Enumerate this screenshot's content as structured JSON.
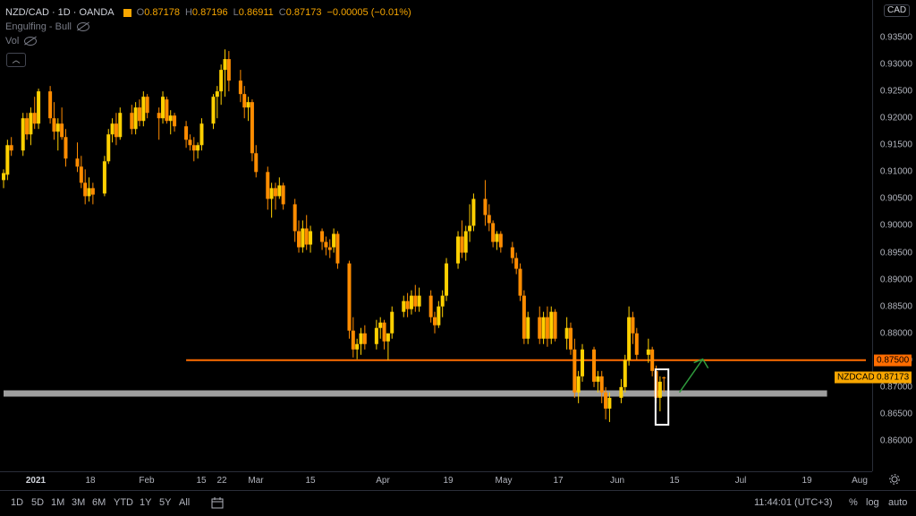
{
  "legend": {
    "symbol": "NZD/CAD · 1D · OANDA",
    "o_label": "O",
    "o_value": "0.87178",
    "h_label": "H",
    "h_value": "0.87196",
    "l_label": "L",
    "l_value": "0.86911",
    "c_label": "C",
    "c_value": "0.87173",
    "change": "−0.00005 (−0.01%)",
    "indicator": "Engulfing - Bull",
    "vol": "Vol"
  },
  "currency": "CAD",
  "price_labels": [
    "0.93500",
    "0.93000",
    "0.92500",
    "0.92000",
    "0.91500",
    "0.91000",
    "0.90500",
    "0.90000",
    "0.89500",
    "0.89000",
    "0.88500",
    "0.88000",
    "0.87500",
    "0.87000",
    "0.86500",
    "0.86000"
  ],
  "tags": {
    "symbol": "NZDCAD",
    "last_price": "0.87173",
    "level_price": "0.87500"
  },
  "time_labels": [
    {
      "t": "2021",
      "bold": true
    },
    {
      "t": "18"
    },
    {
      "t": "Feb"
    },
    {
      "t": "15"
    },
    {
      "t": "22"
    },
    {
      "t": "Mar"
    },
    {
      "t": "15"
    },
    {
      "t": "Apr"
    },
    {
      "t": "19"
    },
    {
      "t": "May"
    },
    {
      "t": "17"
    },
    {
      "t": "Jun"
    },
    {
      "t": "15"
    },
    {
      "t": "Jul"
    },
    {
      "t": "19"
    },
    {
      "t": "Aug"
    }
  ],
  "toolbar": {
    "ranges": [
      "1D",
      "5D",
      "1M",
      "3M",
      "6M",
      "YTD",
      "1Y",
      "5Y",
      "All"
    ],
    "time": "11:44:01 (UTC+3)",
    "percent": "%",
    "log": "log",
    "auto": "auto"
  },
  "colors": {
    "up": "#ffd000",
    "down": "#ff8c00",
    "level": "#ff6d00",
    "zone": "#9e9e9e",
    "arrow": "#2e9a3c",
    "box": "#ffffff"
  },
  "chart_data": {
    "type": "candlestick",
    "title": "NZD/CAD · 1D · OANDA",
    "y_range": [
      0.857,
      0.938
    ],
    "x_range": [
      "2020-12-30",
      "2021-08-09"
    ],
    "horizontal_levels": [
      {
        "price": 0.875,
        "from": "2021-02-15",
        "to": "2021-08-09",
        "label": "0.87500",
        "color": "#ff6d00"
      },
      {
        "price": 0.8688,
        "from": "2020-12-30",
        "to": "2021-07-30",
        "color": "#9e9e9e"
      }
    ],
    "candles": [
      [
        "2020-12-30",
        0.9085,
        0.9105,
        0.907,
        0.9098
      ],
      [
        "2020-12-31",
        0.9095,
        0.916,
        0.9085,
        0.915
      ],
      [
        "2021-01-01",
        0.915,
        0.9165,
        0.913,
        0.914
      ],
      [
        "2021-01-04",
        0.914,
        0.921,
        0.913,
        0.92
      ],
      [
        "2021-01-05",
        0.92,
        0.921,
        0.916,
        0.917
      ],
      [
        "2021-01-06",
        0.917,
        0.922,
        0.915,
        0.921
      ],
      [
        "2021-01-07",
        0.921,
        0.924,
        0.918,
        0.919
      ],
      [
        "2021-01-08",
        0.919,
        0.9255,
        0.918,
        0.925
      ],
      [
        "2021-01-11",
        0.925,
        0.926,
        0.919,
        0.92
      ],
      [
        "2021-01-12",
        0.92,
        0.923,
        0.916,
        0.9175
      ],
      [
        "2021-01-13",
        0.9175,
        0.92,
        0.914,
        0.919
      ],
      [
        "2021-01-14",
        0.919,
        0.922,
        0.916,
        0.9165
      ],
      [
        "2021-01-15",
        0.9165,
        0.918,
        0.911,
        0.9125
      ],
      [
        "2021-01-18",
        0.9125,
        0.9155,
        0.91,
        0.911
      ],
      [
        "2021-01-19",
        0.911,
        0.913,
        0.907,
        0.908
      ],
      [
        "2021-01-20",
        0.908,
        0.9105,
        0.904,
        0.9055
      ],
      [
        "2021-01-21",
        0.9055,
        0.909,
        0.9045,
        0.907
      ],
      [
        "2021-01-22",
        0.907,
        0.908,
        0.904,
        0.9058
      ],
      [
        "2021-01-25",
        0.906,
        0.913,
        0.9055,
        0.912
      ],
      [
        "2021-01-26",
        0.912,
        0.918,
        0.9115,
        0.917
      ],
      [
        "2021-01-27",
        0.917,
        0.92,
        0.9155,
        0.919
      ],
      [
        "2021-01-28",
        0.919,
        0.921,
        0.915,
        0.9165
      ],
      [
        "2021-01-29",
        0.9165,
        0.922,
        0.916,
        0.921
      ],
      [
        "2021-02-01",
        0.921,
        0.9225,
        0.917,
        0.918
      ],
      [
        "2021-02-02",
        0.918,
        0.923,
        0.917,
        0.922
      ],
      [
        "2021-02-03",
        0.922,
        0.9235,
        0.9185,
        0.9195
      ],
      [
        "2021-02-04",
        0.9195,
        0.925,
        0.9185,
        0.924
      ],
      [
        "2021-02-05",
        0.924,
        0.9245,
        0.92,
        0.921
      ],
      [
        "2021-02-08",
        0.921,
        0.922,
        0.916,
        0.92
      ],
      [
        "2021-02-09",
        0.92,
        0.925,
        0.919,
        0.924
      ],
      [
        "2021-02-10",
        0.9235,
        0.924,
        0.919,
        0.9195
      ],
      [
        "2021-02-11",
        0.9195,
        0.9215,
        0.917,
        0.9205
      ],
      [
        "2021-02-12",
        0.9205,
        0.921,
        0.9175,
        0.9185
      ],
      [
        "2021-02-15",
        0.9185,
        0.9195,
        0.9145,
        0.916
      ],
      [
        "2021-02-16",
        0.916,
        0.917,
        0.914,
        0.915
      ],
      [
        "2021-02-17",
        0.915,
        0.9165,
        0.912,
        0.914
      ],
      [
        "2021-02-18",
        0.914,
        0.9155,
        0.9125,
        0.915
      ],
      [
        "2021-02-19",
        0.915,
        0.92,
        0.914,
        0.919
      ],
      [
        "2021-02-22",
        0.919,
        0.9245,
        0.918,
        0.924
      ],
      [
        "2021-02-23",
        0.924,
        0.926,
        0.92,
        0.925
      ],
      [
        "2021-02-24",
        0.925,
        0.93,
        0.9225,
        0.929
      ],
      [
        "2021-02-25",
        0.929,
        0.9328,
        0.924,
        0.931
      ],
      [
        "2021-02-26",
        0.931,
        0.9325,
        0.925,
        0.927
      ],
      [
        "2021-03-01",
        0.927,
        0.929,
        0.923,
        0.9245
      ],
      [
        "2021-03-02",
        0.9245,
        0.926,
        0.92,
        0.922
      ],
      [
        "2021-03-03",
        0.922,
        0.924,
        0.9195,
        0.923
      ],
      [
        "2021-03-04",
        0.923,
        0.9235,
        0.912,
        0.9135
      ],
      [
        "2021-03-05",
        0.9135,
        0.915,
        0.909,
        0.91
      ],
      [
        "2021-03-08",
        0.91,
        0.911,
        0.903,
        0.905
      ],
      [
        "2021-03-09",
        0.905,
        0.908,
        0.9015,
        0.907
      ],
      [
        "2021-03-10",
        0.907,
        0.908,
        0.903,
        0.9055
      ],
      [
        "2021-03-11",
        0.9055,
        0.909,
        0.905,
        0.9075
      ],
      [
        "2021-03-12",
        0.9075,
        0.908,
        0.903,
        0.904
      ],
      [
        "2021-03-15",
        0.904,
        0.905,
        0.897,
        0.899
      ],
      [
        "2021-03-16",
        0.899,
        0.901,
        0.895,
        0.896
      ],
      [
        "2021-03-17",
        0.896,
        0.901,
        0.895,
        0.8995
      ],
      [
        "2021-03-18",
        0.8995,
        0.902,
        0.8955,
        0.8965
      ],
      [
        "2021-03-19",
        0.8965,
        0.9,
        0.895,
        0.899
      ],
      [
        "2021-03-22",
        0.899,
        0.8995,
        0.8955,
        0.897
      ],
      [
        "2021-03-23",
        0.897,
        0.898,
        0.8945,
        0.896
      ],
      [
        "2021-03-24",
        0.896,
        0.8975,
        0.894,
        0.8955
      ],
      [
        "2021-03-25",
        0.896,
        0.8995,
        0.895,
        0.8985
      ],
      [
        "2021-03-26",
        0.8985,
        0.899,
        0.892,
        0.893
      ],
      [
        "2021-03-29",
        0.893,
        0.8935,
        0.879,
        0.8805
      ],
      [
        "2021-03-30",
        0.8805,
        0.883,
        0.8755,
        0.877
      ],
      [
        "2021-03-31",
        0.877,
        0.879,
        0.8752,
        0.878
      ],
      [
        "2021-04-01",
        0.878,
        0.881,
        0.876,
        0.88
      ],
      [
        "2021-04-02",
        0.88,
        0.8815,
        0.877,
        0.878
      ],
      [
        "2021-04-05",
        0.878,
        0.8825,
        0.877,
        0.881
      ],
      [
        "2021-04-06",
        0.881,
        0.883,
        0.879,
        0.882
      ],
      [
        "2021-04-07",
        0.882,
        0.8825,
        0.877,
        0.8785
      ],
      [
        "2021-04-08",
        0.8785,
        0.8795,
        0.875,
        0.88
      ],
      [
        "2021-04-09",
        0.88,
        0.885,
        0.879,
        0.884
      ],
      [
        "2021-04-12",
        0.884,
        0.887,
        0.883,
        0.886
      ],
      [
        "2021-04-13",
        0.886,
        0.8875,
        0.883,
        0.8845
      ],
      [
        "2021-04-14",
        0.8845,
        0.888,
        0.8835,
        0.887
      ],
      [
        "2021-04-15",
        0.887,
        0.889,
        0.884,
        0.885
      ],
      [
        "2021-04-16",
        0.885,
        0.8885,
        0.884,
        0.887
      ],
      [
        "2021-04-19",
        0.887,
        0.888,
        0.882,
        0.883
      ],
      [
        "2021-04-20",
        0.883,
        0.884,
        0.88,
        0.8815
      ],
      [
        "2021-04-21",
        0.8815,
        0.886,
        0.881,
        0.885
      ],
      [
        "2021-04-22",
        0.885,
        0.888,
        0.883,
        0.887
      ],
      [
        "2021-04-23",
        0.887,
        0.894,
        0.886,
        0.893
      ],
      [
        "2021-04-26",
        0.893,
        0.899,
        0.892,
        0.898
      ],
      [
        "2021-04-27",
        0.898,
        0.901,
        0.894,
        0.895
      ],
      [
        "2021-04-28",
        0.895,
        0.9,
        0.8935,
        0.899
      ],
      [
        "2021-04-29",
        0.899,
        0.904,
        0.897,
        0.9
      ],
      [
        "2021-04-30",
        0.9,
        0.906,
        0.899,
        0.905
      ],
      [
        "2021-05-03",
        0.905,
        0.9085,
        0.9,
        0.902
      ],
      [
        "2021-05-04",
        0.902,
        0.904,
        0.899,
        0.9005
      ],
      [
        "2021-05-05",
        0.9005,
        0.901,
        0.896,
        0.897
      ],
      [
        "2021-05-06",
        0.897,
        0.899,
        0.8955,
        0.8985
      ],
      [
        "2021-05-07",
        0.8985,
        0.899,
        0.895,
        0.896
      ],
      [
        "2021-05-10",
        0.896,
        0.897,
        0.893,
        0.894
      ],
      [
        "2021-05-11",
        0.894,
        0.895,
        0.891,
        0.892
      ],
      [
        "2021-05-12",
        0.892,
        0.893,
        0.886,
        0.887
      ],
      [
        "2021-05-13",
        0.887,
        0.888,
        0.878,
        0.879
      ],
      [
        "2021-05-14",
        0.879,
        0.884,
        0.878,
        0.883
      ],
      [
        "2021-05-17",
        0.883,
        0.885,
        0.878,
        0.879
      ],
      [
        "2021-05-18",
        0.879,
        0.884,
        0.878,
        0.883
      ],
      [
        "2021-05-19",
        0.883,
        0.885,
        0.8775,
        0.879
      ],
      [
        "2021-05-20",
        0.879,
        0.885,
        0.878,
        0.884
      ],
      [
        "2021-05-21",
        0.884,
        0.8845,
        0.8785,
        0.879
      ],
      [
        "2021-05-24",
        0.879,
        0.883,
        0.877,
        0.881
      ],
      [
        "2021-05-25",
        0.881,
        0.882,
        0.876,
        0.877
      ],
      [
        "2021-05-26",
        0.877,
        0.879,
        0.868,
        0.869
      ],
      [
        "2021-05-27",
        0.869,
        0.873,
        0.867,
        0.872
      ],
      [
        "2021-05-28",
        0.872,
        0.878,
        0.871,
        0.877
      ],
      [
        "2021-05-31",
        0.877,
        0.8775,
        0.87,
        0.871
      ],
      [
        "2021-06-01",
        0.871,
        0.873,
        0.869,
        0.872
      ],
      [
        "2021-06-02",
        0.872,
        0.873,
        0.867,
        0.869
      ],
      [
        "2021-06-03",
        0.869,
        0.87,
        0.864,
        0.866
      ],
      [
        "2021-06-04",
        0.866,
        0.869,
        0.8635,
        0.868
      ],
      [
        "2021-06-07",
        0.868,
        0.8715,
        0.867,
        0.87
      ],
      [
        "2021-06-08",
        0.87,
        0.876,
        0.869,
        0.875
      ],
      [
        "2021-06-09",
        0.875,
        0.885,
        0.874,
        0.883
      ],
      [
        "2021-06-10",
        0.883,
        0.884,
        0.878,
        0.88
      ],
      [
        "2021-06-11",
        0.88,
        0.881,
        0.875,
        0.876
      ],
      [
        "2021-06-14",
        0.876,
        0.879,
        0.8745,
        0.877
      ],
      [
        "2021-06-15",
        0.877,
        0.8775,
        0.872,
        0.873
      ],
      [
        "2021-06-16",
        0.873,
        0.874,
        0.867,
        0.868
      ],
      [
        "2021-06-17",
        0.868,
        0.872,
        0.8655,
        0.871
      ],
      [
        "2021-06-18",
        0.87178,
        0.87196,
        0.86911,
        0.87173
      ]
    ],
    "highlight_box": {
      "from": "2021-06-17",
      "to": "2021-06-18",
      "top": 0.8733,
      "bottom": 0.863
    },
    "arrow": {
      "from": [
        "2021-06-22",
        0.869
      ],
      "to": [
        "2021-06-28",
        0.8752
      ]
    }
  }
}
